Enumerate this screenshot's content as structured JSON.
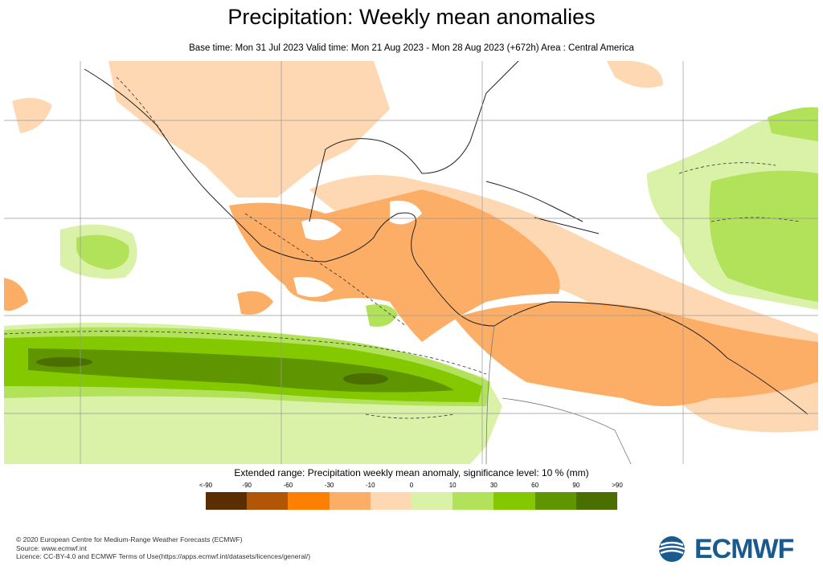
{
  "header": {
    "title": "Precipitation: Weekly mean anomalies",
    "subtitle": "Base time: Mon 31 Jul 2023 Valid time: Mon 21 Aug 2023 - Mon 28 Aug 2023 (+672h) Area : Central America"
  },
  "legend": {
    "title": "Extended range: Precipitation weekly mean anomaly, significance level: 10 % (mm)",
    "labels": [
      "<-90",
      "-90",
      "-60",
      "-30",
      "-10",
      "0",
      "10",
      "30",
      "60",
      "90",
      ">90"
    ],
    "colors": [
      "#5a2e00",
      "#b05606",
      "#ff8000",
      "#fdae66",
      "#fed7b3",
      "#d9f2a7",
      "#b2e25a",
      "#84c800",
      "#5f9600",
      "#4a6e00"
    ]
  },
  "footer": {
    "copyright": "© 2020 European Centre for Medium-Range Weather Forecasts (ECMWF)",
    "source": "Source: www.ecmwf.int",
    "licence": "Licence: CC-BY-4.0 and ECMWF Terms of Use(https://apps.ecmwf.int/datasets/licences/general/)"
  },
  "logo": {
    "text": "ECMWF",
    "color": "#1b5a8c"
  }
}
